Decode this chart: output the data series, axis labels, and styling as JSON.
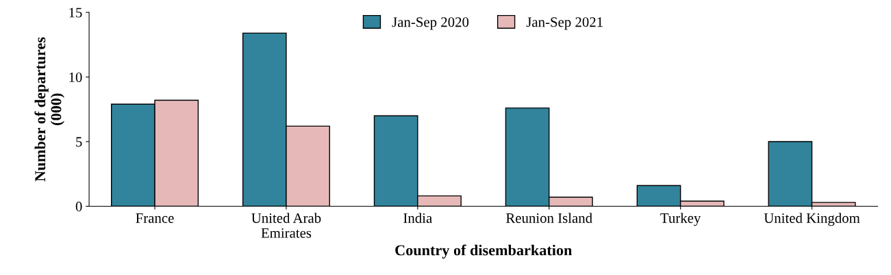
{
  "chart_data": {
    "type": "bar",
    "xlabel": "Country of disembarkation",
    "ylabel": "Number of departures\n(000)",
    "categories": [
      "France",
      "United Arab\nEmirates",
      "India",
      "Reunion Island",
      "Turkey",
      "United Kingdom"
    ],
    "series": [
      {
        "name": "Jan-Sep 2020",
        "color": "#31849b",
        "values": [
          7.9,
          13.4,
          7.0,
          7.6,
          1.6,
          5.0
        ]
      },
      {
        "name": "Jan-Sep 2021",
        "color": "#e6b9b8",
        "values": [
          8.2,
          6.2,
          0.8,
          0.7,
          0.4,
          0.3
        ]
      }
    ],
    "ylim": [
      0,
      15
    ],
    "yticks": [
      0,
      5,
      10,
      15
    ],
    "grid": false,
    "legend": "top"
  }
}
